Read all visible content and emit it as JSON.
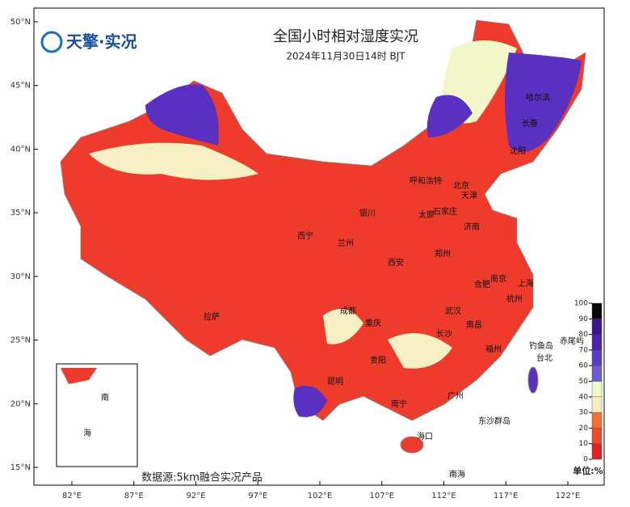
{
  "header": {
    "title": "全国小时相对湿度实况",
    "subtitle": "2024年11月30日14时 BJT",
    "logo": "天擎·实况"
  },
  "footer": {
    "source": "数据源:5km融合实况产品",
    "unit": "单位:%"
  },
  "map": {
    "lat_ticks": [
      {
        "value": 50,
        "label": "50°N"
      },
      {
        "value": 45,
        "label": "45°N"
      },
      {
        "value": 40,
        "label": "40°N"
      },
      {
        "value": 35,
        "label": "35°N"
      },
      {
        "value": 30,
        "label": "30°N"
      },
      {
        "value": 25,
        "label": "25°N"
      },
      {
        "value": 20,
        "label": "20°N"
      },
      {
        "value": 15,
        "label": "15°N"
      }
    ],
    "lon_ticks": [
      {
        "value": 82,
        "label": "82°E"
      },
      {
        "value": 87,
        "label": "87°E"
      },
      {
        "value": 92,
        "label": "92°E"
      },
      {
        "value": 97,
        "label": "97°E"
      },
      {
        "value": 102,
        "label": "102°E"
      },
      {
        "value": 107,
        "label": "107°E"
      },
      {
        "value": 112,
        "label": "112°E"
      },
      {
        "value": 117,
        "label": "117°E"
      },
      {
        "value": 122,
        "label": "122°E"
      }
    ],
    "cities": [
      "哈尔滨",
      "长春",
      "沈阳",
      "呼和浩特",
      "北京",
      "天津",
      "石家庄",
      "太原",
      "银川",
      "济南",
      "西宁",
      "兰州",
      "郑州",
      "西安",
      "南京",
      "合肥",
      "上海",
      "杭州",
      "成都",
      "武汉",
      "拉萨",
      "重庆",
      "南昌",
      "长沙",
      "福州",
      "贵阳",
      "台北",
      "昆明",
      "南宁",
      "广州",
      "海口",
      "钓鱼岛",
      "赤尾屿",
      "东沙群岛",
      "南海"
    ],
    "inset_labels": [
      "南",
      "海"
    ]
  },
  "colorbar": {
    "ticks": [
      0,
      10,
      20,
      30,
      40,
      50,
      60,
      70,
      80,
      90,
      100
    ],
    "colors": [
      "#e0202a",
      "#f04a2e",
      "#f5702f",
      "#f8ecc0",
      "#eef7c8",
      "#6a5ed0",
      "#5a3cc8",
      "#4a22b0",
      "#3a1590",
      "#080808"
    ]
  }
}
